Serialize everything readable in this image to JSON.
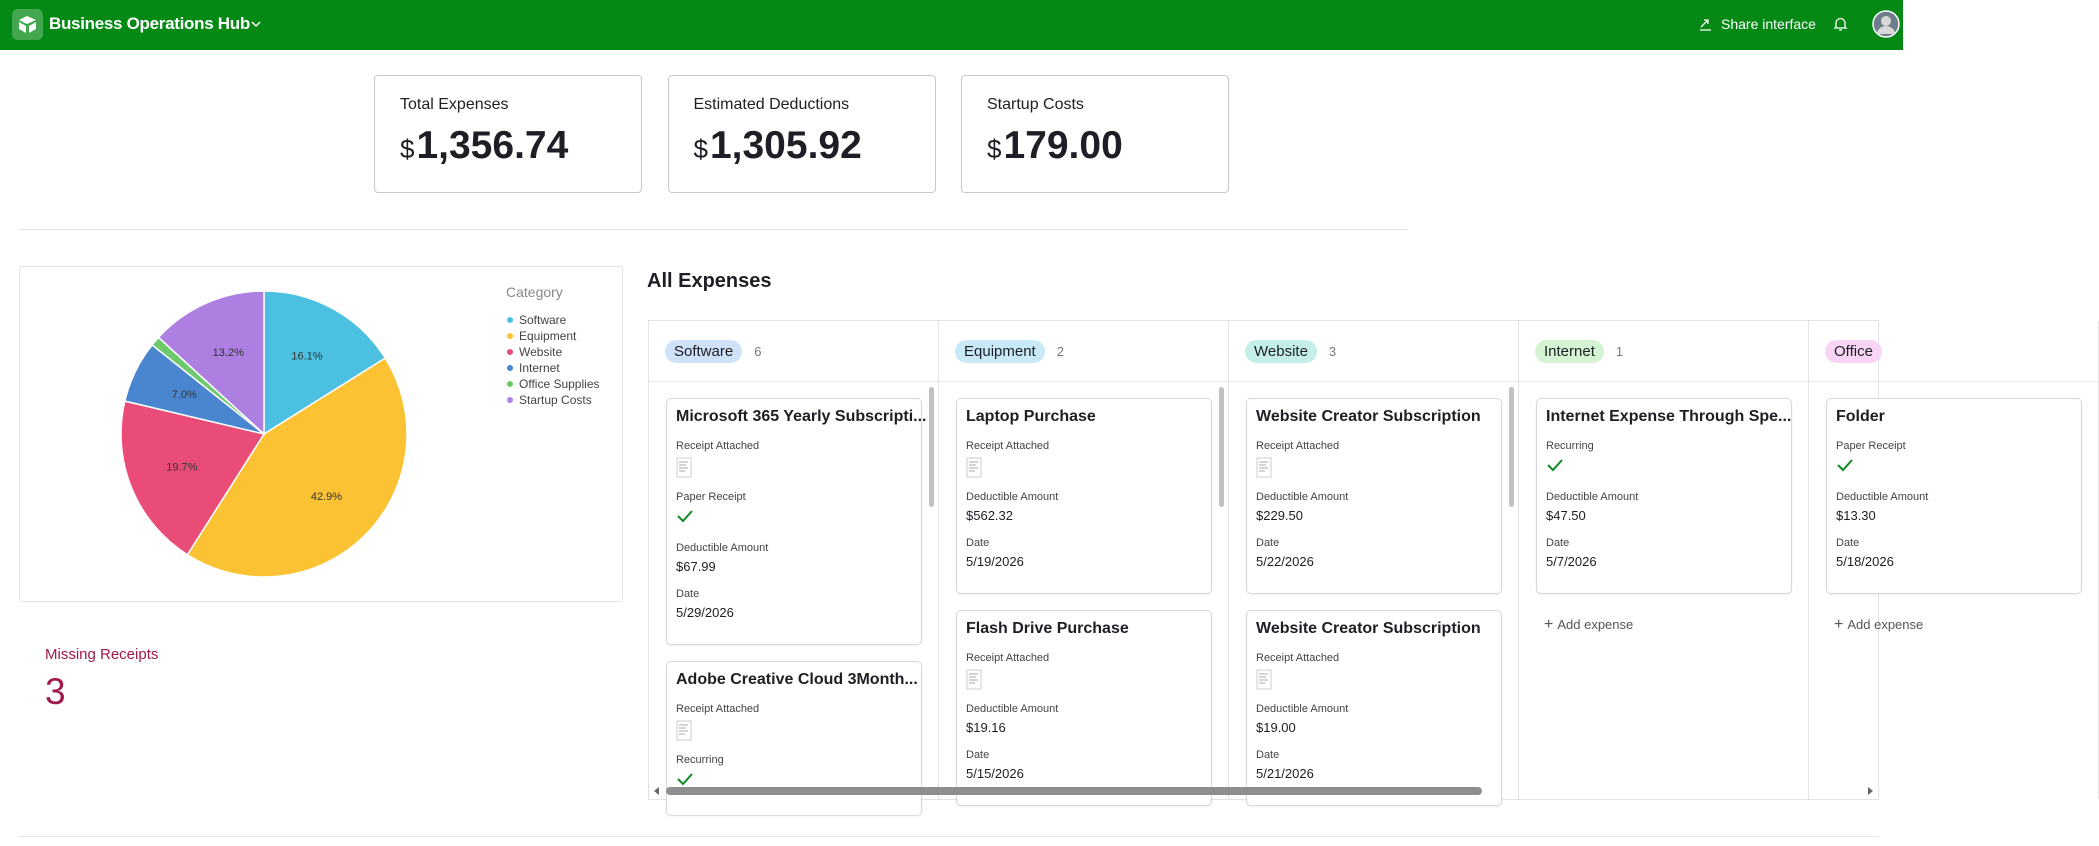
{
  "header": {
    "title": "Business Operations Hub",
    "share": "Share interface"
  },
  "kpis": [
    {
      "label": "Total Expenses",
      "currency": "$",
      "amount": "1,356.74"
    },
    {
      "label": "Estimated Deductions",
      "currency": "$",
      "amount": "1,305.92"
    },
    {
      "label": "Startup Costs",
      "currency": "$",
      "amount": "179.00"
    }
  ],
  "chart_data": {
    "type": "pie",
    "legend_title": "Category",
    "categories": [
      "Software",
      "Equipment",
      "Website",
      "Internet",
      "Office Supplies",
      "Startup Costs"
    ],
    "colors": [
      "#4cc0e0",
      "#fbc234",
      "#ea4c78",
      "#4a86cf",
      "#6cc96c",
      "#ad7fe0"
    ],
    "values": [
      16.1,
      42.9,
      19.7,
      7.0,
      1.1,
      13.2
    ],
    "value_labels": [
      "16.1%",
      "42.9%",
      "19.7%",
      "7.0%",
      null,
      "13.2%"
    ]
  },
  "missing_receipts": {
    "label": "Missing Receipts",
    "value": 3
  },
  "board": {
    "title": "All Expenses",
    "add_label": "Add expense",
    "columns": [
      {
        "name": "Software",
        "count": 6,
        "color": "#cfe2f8",
        "cards": [
          {
            "title": "Microsoft 365 Yearly Subscripti...",
            "fields": [
              {
                "label": "Receipt Attached",
                "kind": "receipt"
              },
              {
                "label": "Paper Receipt",
                "kind": "check"
              },
              {
                "label": "Deductible Amount",
                "value": "$67.99"
              },
              {
                "label": "Date",
                "value": "5/29/2026"
              }
            ]
          },
          {
            "title": "Adobe Creative Cloud 3Month...",
            "fields": [
              {
                "label": "Receipt Attached",
                "kind": "receipt"
              },
              {
                "label": "Recurring",
                "kind": "check"
              }
            ]
          }
        ]
      },
      {
        "name": "Equipment",
        "count": 2,
        "color": "#c8eaf7",
        "cards": [
          {
            "title": "Laptop Purchase",
            "fields": [
              {
                "label": "Receipt Attached",
                "kind": "receipt"
              },
              {
                "label": "Deductible Amount",
                "value": "$562.32"
              },
              {
                "label": "Date",
                "value": "5/19/2026"
              }
            ]
          },
          {
            "title": "Flash Drive Purchase",
            "fields": [
              {
                "label": "Receipt Attached",
                "kind": "receipt"
              },
              {
                "label": "Deductible Amount",
                "value": "$19.16"
              },
              {
                "label": "Date",
                "value": "5/15/2026"
              }
            ]
          }
        ]
      },
      {
        "name": "Website",
        "count": 3,
        "color": "#c4efe9",
        "cards": [
          {
            "title": "Website Creator Subscription",
            "fields": [
              {
                "label": "Receipt Attached",
                "kind": "receipt"
              },
              {
                "label": "Deductible Amount",
                "value": "$229.50"
              },
              {
                "label": "Date",
                "value": "5/22/2026"
              }
            ]
          },
          {
            "title": "Website Creator Subscription",
            "fields": [
              {
                "label": "Receipt Attached",
                "kind": "receipt"
              },
              {
                "label": "Deductible Amount",
                "value": "$19.00"
              },
              {
                "label": "Date",
                "value": "5/21/2026"
              }
            ]
          }
        ]
      },
      {
        "name": "Internet",
        "count": 1,
        "color": "#d3f3d3",
        "add": true,
        "cards": [
          {
            "title": "Internet Expense Through Spe...",
            "fields": [
              {
                "label": "Recurring",
                "kind": "check"
              },
              {
                "label": "Deductible Amount",
                "value": "$47.50"
              },
              {
                "label": "Date",
                "value": "5/7/2026"
              }
            ]
          }
        ]
      },
      {
        "name": "Office",
        "color": "#f8d5f5",
        "add": true,
        "cards": [
          {
            "title": "Folder",
            "fields": [
              {
                "label": "Paper Receipt",
                "kind": "check"
              },
              {
                "label": "Deductible Amount",
                "value": "$13.30"
              },
              {
                "label": "Date",
                "value": "5/18/2026"
              }
            ]
          }
        ]
      }
    ]
  }
}
